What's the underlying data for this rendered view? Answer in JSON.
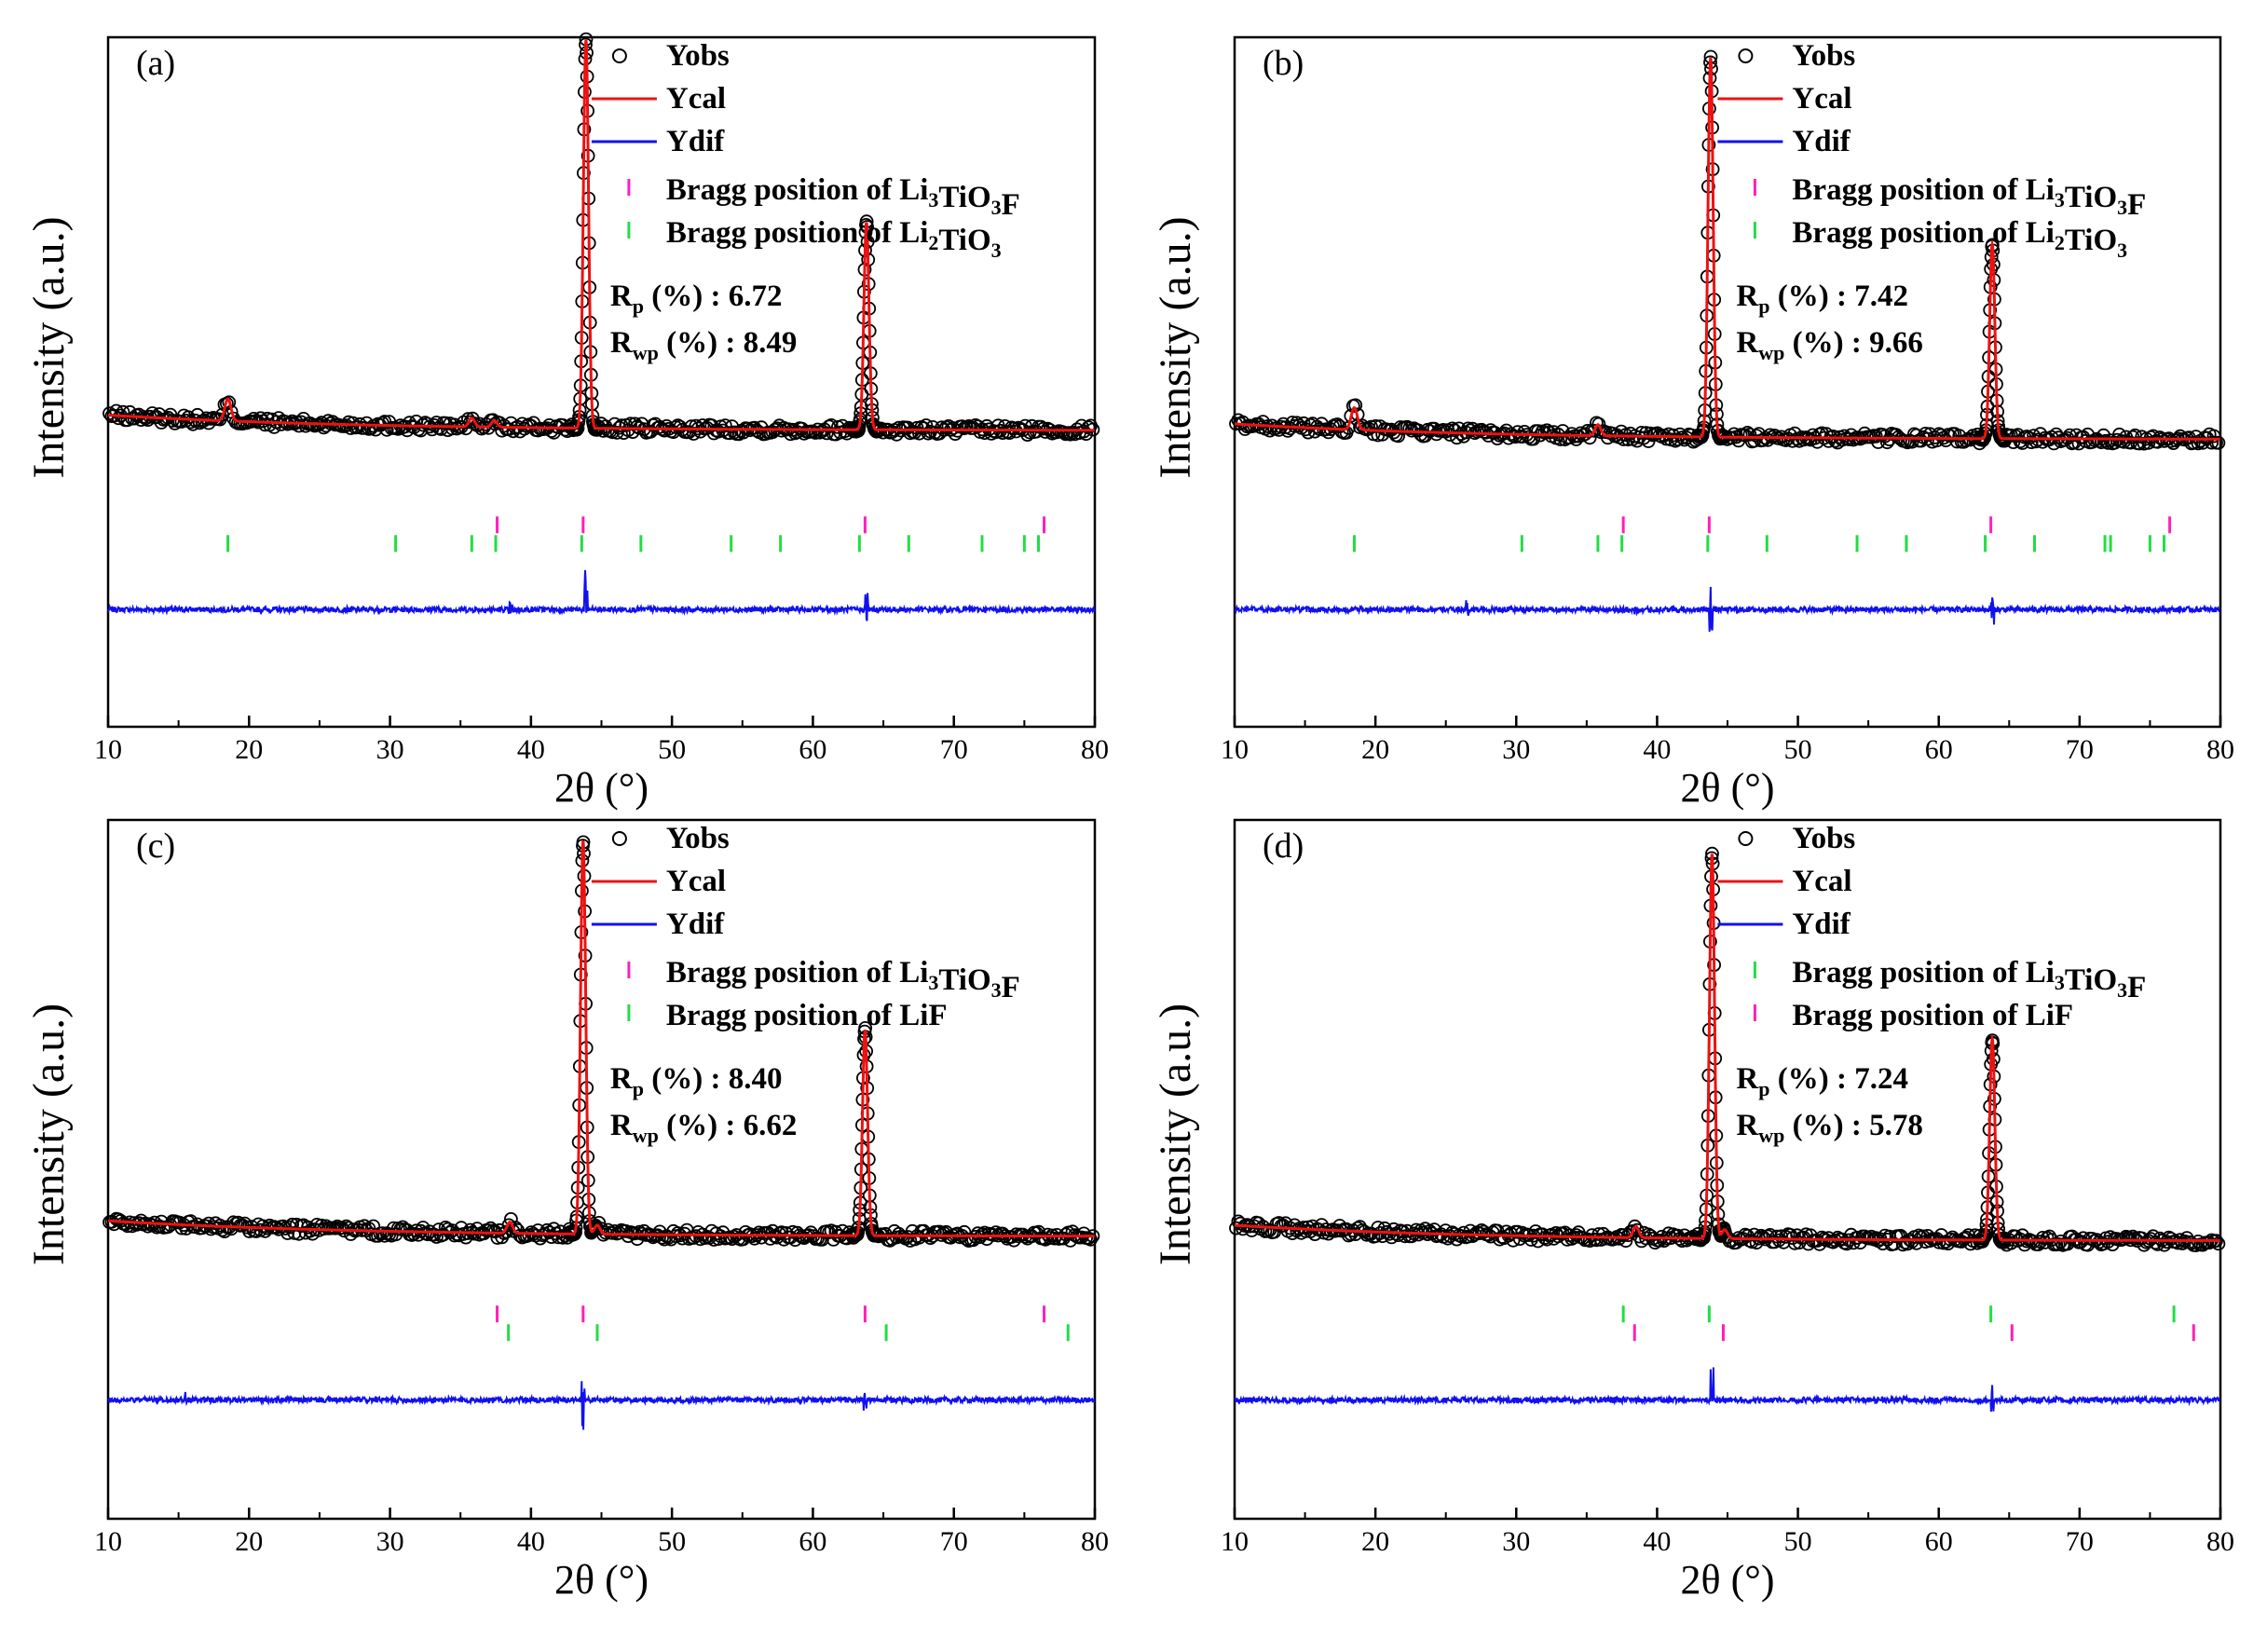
{
  "chart_data": [
    {
      "panel": "(a)",
      "type": "line",
      "xlabel": "2θ (°)",
      "ylabel": "Intensity (a.u.)",
      "xlim": [
        10,
        80
      ],
      "xticks": [
        10,
        20,
        30,
        40,
        50,
        60,
        70,
        80
      ],
      "legend": {
        "yobs": "Yobs",
        "ycal": "Ycal",
        "ydif": "Ydif",
        "bragg": [
          {
            "prefix": "Bragg position of ",
            "formula": [
              [
                "Li",
                ""
              ],
              [
                "3",
                "sub"
              ],
              [
                "TiO",
                ""
              ],
              [
                "3",
                "sub"
              ],
              [
                "F",
                ""
              ]
            ],
            "color": "#ff1fb8"
          },
          {
            "prefix": "Bragg position of ",
            "formula": [
              [
                "Li",
                ""
              ],
              [
                "2",
                "sub"
              ],
              [
                "TiO",
                ""
              ],
              [
                "3",
                "sub"
              ]
            ],
            "color": "#22dd44"
          }
        ],
        "rp_value": "6.72",
        "rwp_value": "8.49"
      },
      "baseline": 0.14,
      "peaks": [
        {
          "x": 18.5,
          "h": 0.05,
          "w": 0.22
        },
        {
          "x": 35.8,
          "h": 0.02,
          "w": 0.2
        },
        {
          "x": 37.4,
          "h": 0.015,
          "w": 0.2
        },
        {
          "x": 43.9,
          "h": 0.88,
          "w": 0.18
        },
        {
          "x": 63.8,
          "h": 0.47,
          "w": 0.18
        }
      ],
      "bragg_sets": [
        {
          "color": "#ff1fb8",
          "positions": [
            37.6,
            43.7,
            63.7,
            76.4
          ]
        },
        {
          "color": "#22dd44",
          "positions": [
            18.5,
            30.4,
            35.8,
            37.5,
            43.6,
            47.8,
            54.2,
            57.7,
            63.3,
            66.8,
            72.0,
            75.0,
            76.0
          ]
        }
      ],
      "diff_spikes": [
        {
          "x": 43.9,
          "a": 0.09
        },
        {
          "x": 63.8,
          "a": 0.05
        },
        {
          "x": 38.5,
          "a": 0.02
        }
      ]
    },
    {
      "panel": "(b)",
      "type": "line",
      "xlabel": "2θ (°)",
      "ylabel": "Intensity (a.u.)",
      "xlim": [
        10,
        80
      ],
      "xticks": [
        10,
        20,
        30,
        40,
        50,
        60,
        70,
        80
      ],
      "legend": {
        "yobs": "Yobs",
        "ycal": "Ycal",
        "ydif": "Ydif",
        "bragg": [
          {
            "prefix": "Bragg position of  ",
            "formula": [
              [
                "Li",
                ""
              ],
              [
                "3",
                "sub"
              ],
              [
                "TiO",
                ""
              ],
              [
                "3",
                "sub"
              ],
              [
                "F",
                ""
              ]
            ],
            "color": "#ff1fb8"
          },
          {
            "prefix": "Bragg position of  ",
            "formula": [
              [
                "Li",
                ""
              ],
              [
                "2",
                "sub"
              ],
              [
                "TiO",
                ""
              ],
              [
                "3",
                "sub"
              ]
            ],
            "color": "#22dd44"
          }
        ],
        "rp_value": "7.42",
        "rwp_value": "9.66"
      },
      "baseline": 0.12,
      "peaks": [
        {
          "x": 18.5,
          "h": 0.05,
          "w": 0.22
        },
        {
          "x": 35.8,
          "h": 0.025,
          "w": 0.2
        },
        {
          "x": 43.8,
          "h": 0.86,
          "w": 0.18
        },
        {
          "x": 63.8,
          "h": 0.44,
          "w": 0.18
        }
      ],
      "bragg_sets": [
        {
          "color": "#ff1fb8",
          "positions": [
            37.6,
            43.7,
            63.7,
            76.4
          ]
        },
        {
          "color": "#22dd44",
          "positions": [
            18.5,
            30.4,
            35.8,
            37.5,
            43.6,
            47.8,
            54.2,
            57.7,
            63.3,
            66.8,
            71.8,
            72.2,
            75.0,
            76.0
          ]
        }
      ],
      "diff_spikes": [
        {
          "x": 43.8,
          "a": 0.06
        },
        {
          "x": 63.8,
          "a": 0.04
        },
        {
          "x": 26.5,
          "a": 0.03
        },
        {
          "x": 38.5,
          "a": 0.02
        }
      ]
    },
    {
      "panel": "(c)",
      "type": "line",
      "xlabel": "2θ (°)",
      "ylabel": "Intensity (a.u.)",
      "xlim": [
        10,
        80
      ],
      "xticks": [
        10,
        20,
        30,
        40,
        50,
        60,
        70,
        80
      ],
      "legend": {
        "yobs": "Yobs",
        "ycal": "Ycal",
        "ydif": "Ydif",
        "bragg": [
          {
            "prefix": "Bragg position of ",
            "formula": [
              [
                "Li",
                ""
              ],
              [
                "3",
                "sub"
              ],
              [
                "TiO",
                ""
              ],
              [
                "3",
                "sub"
              ],
              [
                "F",
                ""
              ]
            ],
            "color": "#ff1fb8"
          },
          {
            "prefix": "Bragg position of ",
            "formula": [
              [
                "LiF",
                ""
              ]
            ],
            "color": "#22dd44"
          }
        ],
        "rp_value": "8.40",
        "rwp_value": "6.62"
      },
      "baseline": 0.1,
      "peaks": [
        {
          "x": 38.5,
          "h": 0.025,
          "w": 0.2
        },
        {
          "x": 43.7,
          "h": 0.88,
          "w": 0.18
        },
        {
          "x": 44.7,
          "h": 0.02,
          "w": 0.2
        },
        {
          "x": 63.7,
          "h": 0.46,
          "w": 0.18
        }
      ],
      "bragg_sets": [
        {
          "color": "#ff1fb8",
          "positions": [
            37.6,
            43.7,
            63.7,
            76.4
          ]
        },
        {
          "color": "#22dd44",
          "positions": [
            38.4,
            44.7,
            65.2,
            78.1
          ]
        }
      ],
      "diff_spikes": [
        {
          "x": 43.7,
          "a": 0.07
        },
        {
          "x": 63.7,
          "a": 0.04
        },
        {
          "x": 15.5,
          "a": 0.02
        }
      ]
    },
    {
      "panel": "(d)",
      "type": "line",
      "xlabel": "2θ (°)",
      "ylabel": "Intensity (a.u.)",
      "xlim": [
        10,
        80
      ],
      "xticks": [
        10,
        20,
        30,
        40,
        50,
        60,
        70,
        80
      ],
      "legend": {
        "yobs": "Yobs",
        "ycal": "Ycal",
        "ydif": "Ydif",
        "bragg": [
          {
            "prefix": "Bragg position of ",
            "formula": [
              [
                "Li",
                ""
              ],
              [
                "3",
                "sub"
              ],
              [
                "TiO",
                ""
              ],
              [
                "3",
                "sub"
              ],
              [
                "F",
                ""
              ]
            ],
            "color": "#22dd44"
          },
          {
            "prefix": "Bragg position of ",
            "formula": [
              [
                "LiF",
                ""
              ]
            ],
            "color": "#ff1fb8"
          }
        ],
        "rp_value": "7.24",
        "rwp_value": "5.78"
      },
      "baseline": 0.09,
      "peaks": [
        {
          "x": 38.5,
          "h": 0.025,
          "w": 0.2
        },
        {
          "x": 43.9,
          "h": 0.86,
          "w": 0.18
        },
        {
          "x": 44.8,
          "h": 0.02,
          "w": 0.2
        },
        {
          "x": 63.8,
          "h": 0.45,
          "w": 0.18
        }
      ],
      "bragg_sets": [
        {
          "color": "#22dd44",
          "positions": [
            37.6,
            43.7,
            63.7,
            76.7
          ]
        },
        {
          "color": "#ff1fb8",
          "positions": [
            38.4,
            44.7,
            65.2,
            78.1
          ]
        }
      ],
      "diff_spikes": [
        {
          "x": 43.9,
          "a": 0.07
        },
        {
          "x": 63.8,
          "a": 0.04
        }
      ]
    }
  ]
}
